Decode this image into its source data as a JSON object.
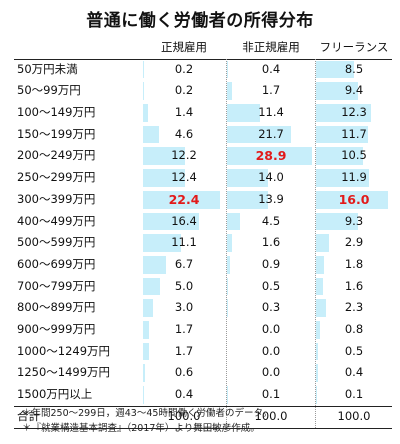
{
  "title": "普通に働く労働者の所得分布",
  "headers": {
    "category": "",
    "regular": "正規雇用",
    "nonregular": "非正規雇用",
    "freelance": "フリーランス"
  },
  "colors": {
    "bar": "#c7eefa",
    "highlight": "#e21a1a",
    "text": "#111111"
  },
  "rows": [
    {
      "label": "50万円未満",
      "regular": "0.2",
      "nonregular": "0.4",
      "freelance": "8.5"
    },
    {
      "label": "50〜99万円",
      "regular": "0.2",
      "nonregular": "1.7",
      "freelance": "9.4"
    },
    {
      "label": "100〜149万円",
      "regular": "1.4",
      "nonregular": "11.4",
      "freelance": "12.3"
    },
    {
      "label": "150〜199万円",
      "regular": "4.6",
      "nonregular": "21.7",
      "freelance": "11.7"
    },
    {
      "label": "200〜249万円",
      "regular": "12.2",
      "nonregular": "28.9",
      "freelance": "10.5"
    },
    {
      "label": "250〜299万円",
      "regular": "12.4",
      "nonregular": "14.0",
      "freelance": "11.9"
    },
    {
      "label": "300〜399万円",
      "regular": "22.4",
      "nonregular": "13.9",
      "freelance": "16.0"
    },
    {
      "label": "400〜499万円",
      "regular": "16.4",
      "nonregular": "4.5",
      "freelance": "9.3"
    },
    {
      "label": "500〜599万円",
      "regular": "11.1",
      "nonregular": "1.6",
      "freelance": "2.9"
    },
    {
      "label": "600〜699万円",
      "regular": "6.7",
      "nonregular": "0.9",
      "freelance": "1.8"
    },
    {
      "label": "700〜799万円",
      "regular": "5.0",
      "nonregular": "0.5",
      "freelance": "1.6"
    },
    {
      "label": "800〜899万円",
      "regular": "3.0",
      "nonregular": "0.3",
      "freelance": "2.3"
    },
    {
      "label": "900〜999万円",
      "regular": "1.7",
      "nonregular": "0.0",
      "freelance": "0.8"
    },
    {
      "label": "1000〜1249万円",
      "regular": "1.7",
      "nonregular": "0.0",
      "freelance": "0.5"
    },
    {
      "label": "1250〜1499万円",
      "regular": "0.6",
      "nonregular": "0.0",
      "freelance": "0.4"
    },
    {
      "label": "1500万円以上",
      "regular": "0.4",
      "nonregular": "0.1",
      "freelance": "0.1"
    }
  ],
  "highlights": {
    "regular": "22.4",
    "nonregular": "28.9",
    "freelance": "16.0"
  },
  "total": {
    "label": "合計",
    "regular": "100.0",
    "nonregular": "100.0",
    "freelance": "100.0"
  },
  "notes": [
    "＊年間250〜299日，週43〜45時間働く労働者のデータ。",
    "＊『就業構造基本調査』（2017年）より舞田敏彦作成。"
  ]
}
